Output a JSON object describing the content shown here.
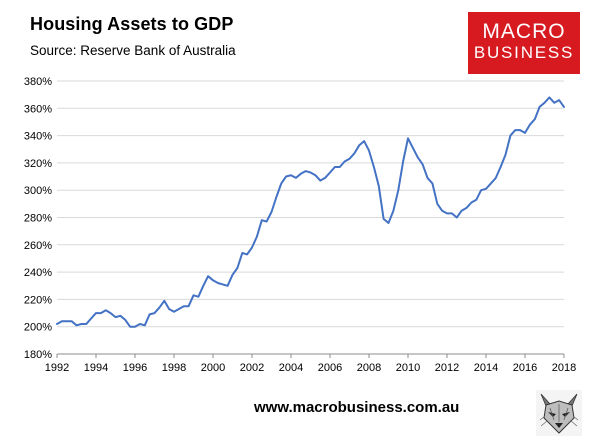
{
  "header": {
    "title": "Housing Assets to GDP",
    "subtitle": "Source: Reserve Bank of Australia"
  },
  "logo": {
    "line1": "MACRO",
    "line2": "BUSINESS",
    "color": "#d71920"
  },
  "footer": {
    "url": "www.macrobusiness.com.au"
  },
  "chart_data": {
    "type": "line",
    "title": "Housing Assets to GDP",
    "xlabel": "",
    "ylabel": "",
    "xlim": [
      1992,
      2018
    ],
    "ylim": [
      180,
      380
    ],
    "x_ticks": [
      "1992",
      "1994",
      "1996",
      "1998",
      "2000",
      "2002",
      "2004",
      "2006",
      "2008",
      "2010",
      "2012",
      "2014",
      "2016",
      "2018"
    ],
    "y_ticks": [
      "180%",
      "200%",
      "220%",
      "240%",
      "260%",
      "280%",
      "300%",
      "320%",
      "340%",
      "360%",
      "380%"
    ],
    "grid": "horizontal",
    "line_color": "#4472c4",
    "series": [
      {
        "x": [
          1992.0,
          1992.25,
          1992.5,
          1992.75,
          1993.0,
          1993.25,
          1993.5,
          1993.75,
          1994.0,
          1994.25,
          1994.5,
          1994.75,
          1995.0,
          1995.25,
          1995.5,
          1995.75,
          1996.0,
          1996.25,
          1996.5,
          1996.75,
          1997.0,
          1997.25,
          1997.5,
          1997.75,
          1998.0,
          1998.25,
          1998.5,
          1998.75,
          1999.0,
          1999.25,
          1999.5,
          1999.75,
          2000.0,
          2000.25,
          2000.5,
          2000.75,
          2001.0,
          2001.25,
          2001.5,
          2001.75,
          2002.0,
          2002.25,
          2002.5,
          2002.75,
          2003.0,
          2003.25,
          2003.5,
          2003.75,
          2004.0,
          2004.25,
          2004.5,
          2004.75,
          2005.0,
          2005.25,
          2005.5,
          2005.75,
          2006.0,
          2006.25,
          2006.5,
          2006.75,
          2007.0,
          2007.25,
          2007.5,
          2007.75,
          2008.0,
          2008.25,
          2008.5,
          2008.75,
          2009.0,
          2009.25,
          2009.5,
          2009.75,
          2010.0,
          2010.25,
          2010.5,
          2010.75,
          2011.0,
          2011.25,
          2011.5,
          2011.75,
          2012.0,
          2012.25,
          2012.5,
          2012.75,
          2013.0,
          2013.25,
          2013.5,
          2013.75,
          2014.0,
          2014.25,
          2014.5,
          2014.75,
          2015.0,
          2015.25,
          2015.5,
          2015.75,
          2016.0,
          2016.25,
          2016.5,
          2016.75,
          2017.0,
          2017.25,
          2017.5,
          2017.75,
          2018.0
        ],
        "y": [
          202,
          204,
          204,
          204,
          201,
          202,
          202,
          206,
          210,
          210,
          212,
          210,
          207,
          208,
          205,
          200,
          200,
          202,
          201,
          209,
          210,
          214,
          219,
          213,
          211,
          213,
          215,
          215,
          223,
          222,
          230,
          237,
          234,
          232,
          231,
          230,
          238,
          243,
          254,
          253,
          258,
          266,
          278,
          277,
          284,
          295,
          305,
          310,
          311,
          309,
          312,
          314,
          313,
          311,
          307,
          309,
          313,
          317,
          317,
          321,
          323,
          327,
          333,
          336,
          329,
          317,
          303,
          279,
          276,
          285,
          300,
          321,
          338,
          331,
          324,
          319,
          309,
          305,
          290,
          285,
          283,
          283,
          280,
          285,
          287,
          291,
          293,
          300,
          301,
          305,
          309,
          317,
          326,
          340,
          344,
          344,
          342,
          348,
          352,
          361,
          364,
          368,
          364,
          366,
          361
        ]
      }
    ]
  }
}
